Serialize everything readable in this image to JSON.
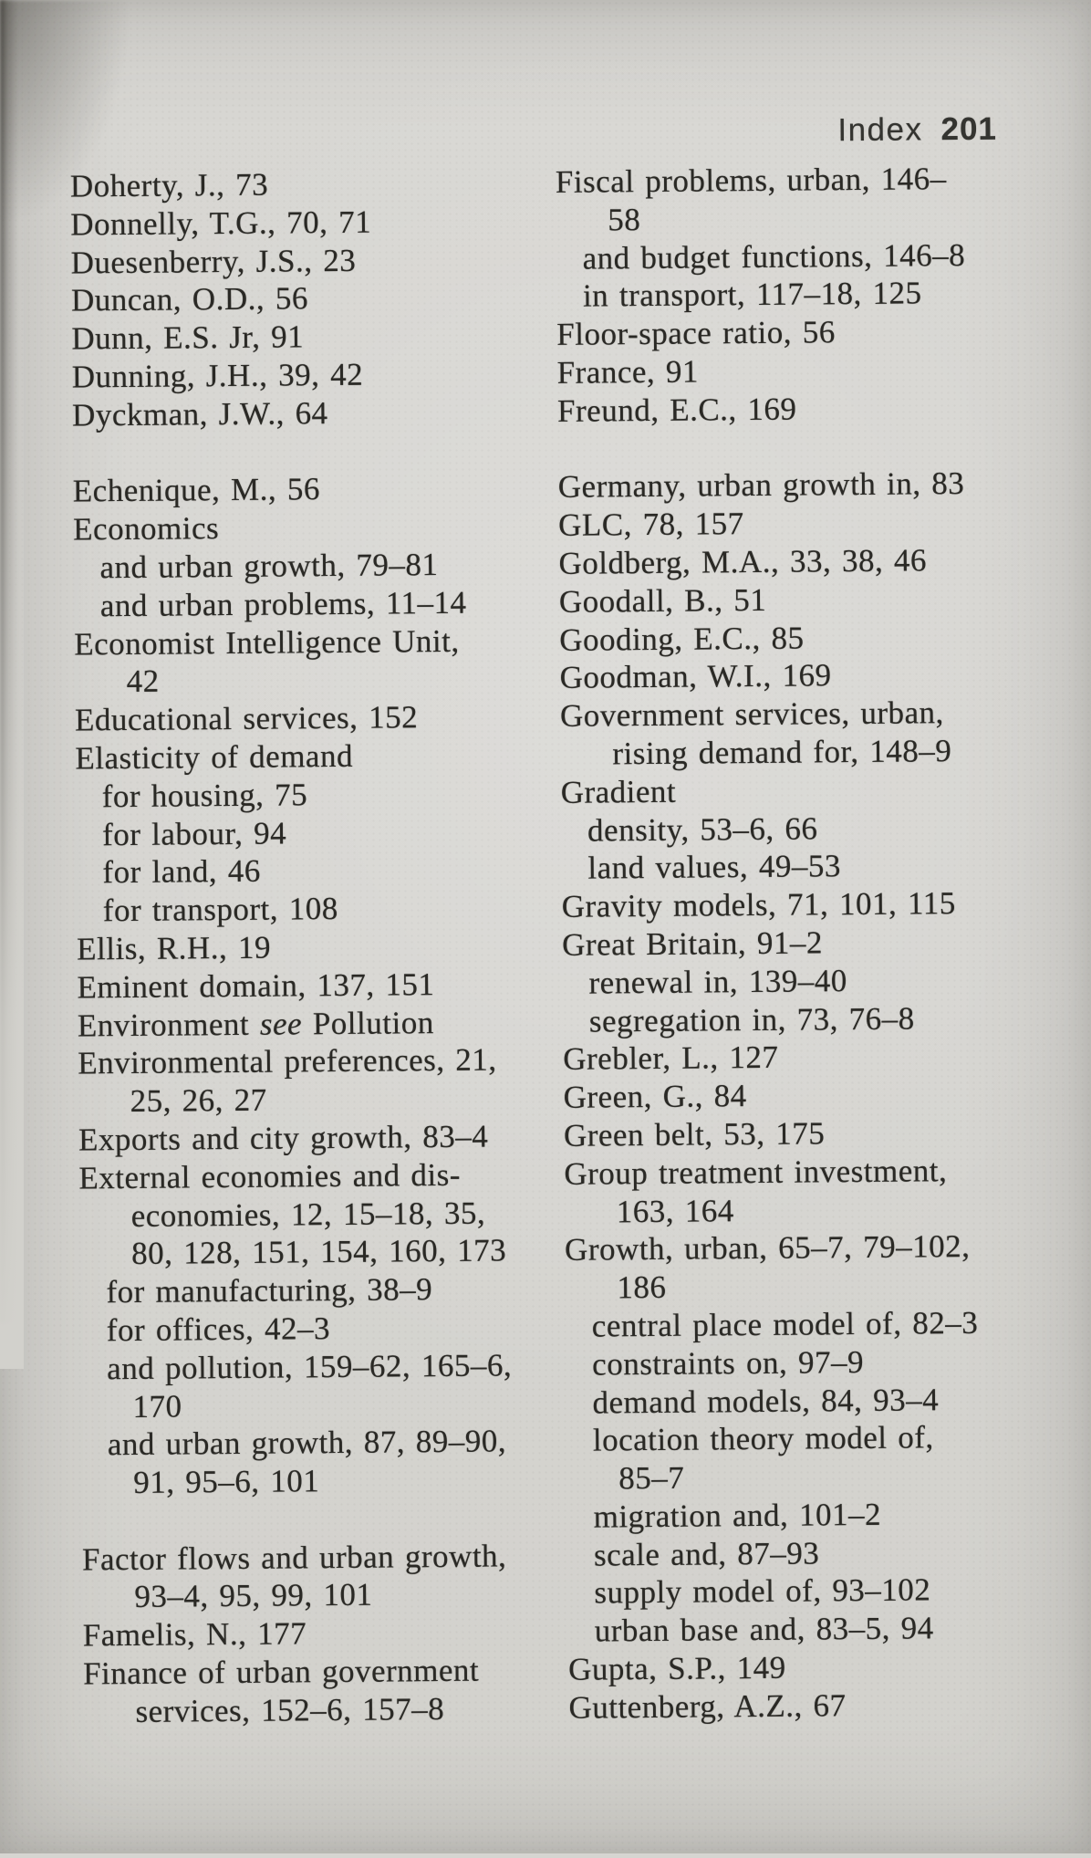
{
  "colors": {
    "paper": "#d6d5d1",
    "ink": "#2a2925",
    "header_ink": "#343430"
  },
  "header": {
    "running_title": "Index",
    "page_number": "201"
  },
  "columns": {
    "left": {
      "lines": [
        {
          "text": "Doherty, J., 73",
          "indent": 0
        },
        {
          "text": "Donnelly, T.G., 70, 71",
          "indent": 0
        },
        {
          "text": "Duesenberry, J.S., 23",
          "indent": 0
        },
        {
          "text": "Duncan, O.D., 56",
          "indent": 0
        },
        {
          "text": "Dunn, E.S. Jr, 91",
          "indent": 0
        },
        {
          "text": "Dunning, J.H., 39, 42",
          "indent": 0
        },
        {
          "text": "Dyckman, J.W., 64",
          "indent": 0
        },
        {
          "text": "",
          "indent": 0,
          "blank": true
        },
        {
          "text": "Echenique, M., 56",
          "indent": 0
        },
        {
          "text": "Economics",
          "indent": 0
        },
        {
          "text": "and urban growth, 79–81",
          "indent": 1
        },
        {
          "text": "and urban problems, 11–14",
          "indent": 1
        },
        {
          "text": "Economist Intelligence Unit,",
          "indent": 0
        },
        {
          "text": "42",
          "indent": 2
        },
        {
          "text": "Educational services, 152",
          "indent": 0
        },
        {
          "text": "Elasticity of demand",
          "indent": 0
        },
        {
          "text": "for housing, 75",
          "indent": 1
        },
        {
          "text": "for labour, 94",
          "indent": 1
        },
        {
          "text": "for land, 46",
          "indent": 1
        },
        {
          "text": "for transport, 108",
          "indent": 1
        },
        {
          "text": "Ellis, R.H., 19",
          "indent": 0
        },
        {
          "text": "Eminent domain, 137, 151",
          "indent": 0
        },
        {
          "indent": 0,
          "parts": [
            {
              "text": "Environment "
            },
            {
              "text": "see",
              "italic": true
            },
            {
              "text": " Pollution"
            }
          ]
        },
        {
          "text": "Environmental preferences, 21,",
          "indent": 0
        },
        {
          "text": "25, 26, 27",
          "indent": 2
        },
        {
          "text": "Exports and city growth, 83–4",
          "indent": 0
        },
        {
          "text": "External economies and dis-",
          "indent": 0
        },
        {
          "text": "economies, 12, 15–18, 35,",
          "indent": 2
        },
        {
          "text": "80, 128, 151, 154, 160, 173",
          "indent": 2
        },
        {
          "text": "for manufacturing, 38–9",
          "indent": 1
        },
        {
          "text": "for offices, 42–3",
          "indent": 1
        },
        {
          "text": "and pollution, 159–62, 165–6,",
          "indent": 1
        },
        {
          "text": "170",
          "indent": 2
        },
        {
          "text": "and urban growth, 87, 89–90,",
          "indent": 1
        },
        {
          "text": "91, 95–6, 101",
          "indent": 2
        },
        {
          "text": "",
          "indent": 0,
          "blank": true
        },
        {
          "text": "Factor flows and urban growth,",
          "indent": 0
        },
        {
          "text": "93–4, 95, 99, 101",
          "indent": 2
        },
        {
          "text": "Famelis, N., 177",
          "indent": 0
        },
        {
          "text": "Finance of urban government",
          "indent": 0
        },
        {
          "text": "services, 152–6, 157–8",
          "indent": 2
        }
      ]
    },
    "right": {
      "lines": [
        {
          "text": "Fiscal problems, urban, 146–",
          "indent": 0
        },
        {
          "text": "58",
          "indent": 2
        },
        {
          "text": "and budget functions, 146–8",
          "indent": 1
        },
        {
          "text": "in transport, 117–18, 125",
          "indent": 1
        },
        {
          "text": "Floor-space ratio, 56",
          "indent": 0
        },
        {
          "text": "France, 91",
          "indent": 0
        },
        {
          "text": "Freund, E.C., 169",
          "indent": 0
        },
        {
          "text": "",
          "indent": 0,
          "blank": true
        },
        {
          "text": "Germany, urban growth in, 83",
          "indent": 0
        },
        {
          "text": "GLC, 78, 157",
          "indent": 0
        },
        {
          "text": "Goldberg, M.A., 33, 38, 46",
          "indent": 0
        },
        {
          "text": "Goodall, B., 51",
          "indent": 0
        },
        {
          "text": "Gooding, E.C., 85",
          "indent": 0
        },
        {
          "text": "Goodman, W.I., 169",
          "indent": 0
        },
        {
          "text": "Government services, urban,",
          "indent": 0
        },
        {
          "text": "rising demand for, 148–9",
          "indent": 2
        },
        {
          "text": "Gradient",
          "indent": 0
        },
        {
          "text": "density, 53–6, 66",
          "indent": 1
        },
        {
          "text": "land values, 49–53",
          "indent": 1
        },
        {
          "text": "Gravity models, 71, 101, 115",
          "indent": 0
        },
        {
          "text": "Great Britain, 91–2",
          "indent": 0
        },
        {
          "text": "renewal in, 139–40",
          "indent": 1
        },
        {
          "text": "segregation in, 73, 76–8",
          "indent": 1
        },
        {
          "text": "Grebler, L., 127",
          "indent": 0
        },
        {
          "text": "Green, G., 84",
          "indent": 0
        },
        {
          "text": "Green belt, 53, 175",
          "indent": 0
        },
        {
          "text": "Group treatment investment,",
          "indent": 0
        },
        {
          "text": "163, 164",
          "indent": 2
        },
        {
          "text": "Growth, urban, 65–7, 79–102,",
          "indent": 0
        },
        {
          "text": "186",
          "indent": 2
        },
        {
          "text": "central place model of, 82–3",
          "indent": 1
        },
        {
          "text": "constraints on, 97–9",
          "indent": 1
        },
        {
          "text": "demand models, 84, 93–4",
          "indent": 1
        },
        {
          "text": "location theory model of,",
          "indent": 1
        },
        {
          "text": "85–7",
          "indent": 2
        },
        {
          "text": "migration and, 101–2",
          "indent": 1
        },
        {
          "text": "scale and, 87–93",
          "indent": 1
        },
        {
          "text": "supply model of, 93–102",
          "indent": 1
        },
        {
          "text": "urban base and, 83–5, 94",
          "indent": 1
        },
        {
          "text": "Gupta, S.P., 149",
          "indent": 0
        },
        {
          "text": "Guttenberg, A.Z., 67",
          "indent": 0
        }
      ]
    }
  }
}
